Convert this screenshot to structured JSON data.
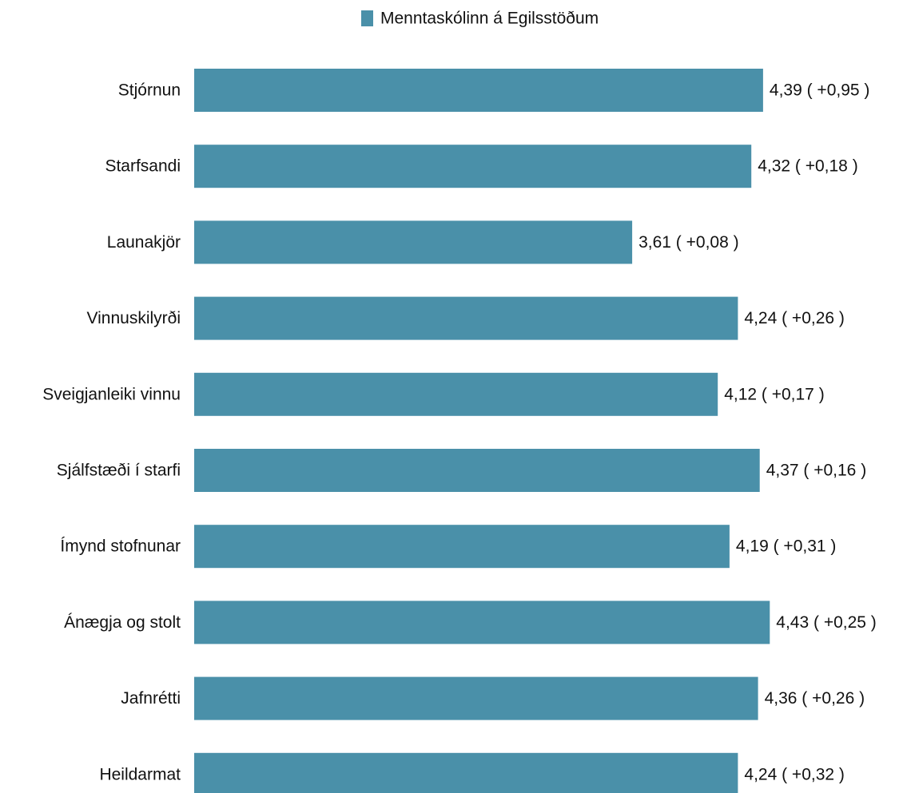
{
  "chart_data": {
    "type": "bar",
    "orientation": "horizontal",
    "categories": [
      "Stjórnun",
      "Starfsandi",
      "Launakjör",
      "Vinnuskilyrði",
      "Sveigjanleiki vinnu",
      "Sjálfstæði í starfi",
      "Ímynd stofnunar",
      "Ánægja og stolt",
      "Jafnrétti",
      "Heildarmat"
    ],
    "series": [
      {
        "name": "Menntaskólinn á Egilsstöðum",
        "color": "#4a90a9",
        "values": [
          4.39,
          4.32,
          3.61,
          4.24,
          4.12,
          4.37,
          4.19,
          4.43,
          4.36,
          4.24
        ],
        "value_labels": [
          "4,39 ( +0,95 )",
          "4,32 ( +0,18 )",
          "3,61 ( +0,08 )",
          "4,24 ( +0,26 )",
          "4,12 ( +0,17 )",
          "4,37 ( +0,16 )",
          "4,19 ( +0,31 )",
          "4,43 ( +0,25 )",
          "4,36 ( +0,26 )",
          "4,24 ( +0,32 )"
        ]
      }
    ],
    "xlim": [
      1,
      5
    ],
    "legend": "top"
  }
}
